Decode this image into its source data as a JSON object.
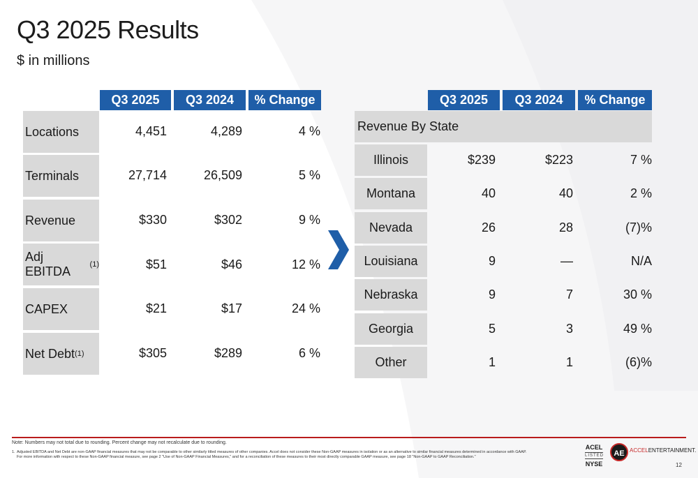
{
  "title": "Q3 2025 Results",
  "subtitle": "$ in millions",
  "left_table": {
    "headers": [
      "Q3 2025",
      "Q3 2024",
      "% Change"
    ],
    "rows": [
      {
        "label": "Locations",
        "sup": "",
        "q3_2025": "4,451",
        "q3_2024": "4,289",
        "change": "4 %"
      },
      {
        "label": "Terminals",
        "sup": "",
        "q3_2025": "27,714",
        "q3_2024": "26,509",
        "change": "5 %"
      },
      {
        "label": "Revenue",
        "sup": "",
        "q3_2025": "$330",
        "q3_2024": "$302",
        "change": "9 %"
      },
      {
        "label": "Adj EBITDA",
        "sup": "(1)",
        "q3_2025": "$51",
        "q3_2024": "$46",
        "change": "12 %"
      },
      {
        "label": "CAPEX",
        "sup": "",
        "q3_2025": "$21",
        "q3_2024": "$17",
        "change": "24 %"
      },
      {
        "label": "Net Debt",
        "sup": "(1)",
        "q3_2025": "$305",
        "q3_2024": "$289",
        "change": "6 %"
      }
    ]
  },
  "right_table": {
    "headers": [
      "Q3 2025",
      "Q3 2024",
      "% Change"
    ],
    "section_label": "Revenue By State",
    "rows": [
      {
        "label": "Illinois",
        "q3_2025": "$239",
        "q3_2024": "$223",
        "change": "7 %"
      },
      {
        "label": "Montana",
        "q3_2025": "40",
        "q3_2024": "40",
        "change": "2 %"
      },
      {
        "label": "Nevada",
        "q3_2025": "26",
        "q3_2024": "28",
        "change": "(7)%"
      },
      {
        "label": "Louisiana",
        "q3_2025": "9",
        "q3_2024": "—",
        "change": "N/A"
      },
      {
        "label": "Nebraska",
        "q3_2025": "9",
        "q3_2024": "7",
        "change": "30 %"
      },
      {
        "label": "Georgia",
        "q3_2025": "5",
        "q3_2024": "3",
        "change": "49 %"
      },
      {
        "label": "Other",
        "q3_2025": "1",
        "q3_2024": "1",
        "change": "(6)%"
      }
    ]
  },
  "footer": {
    "note": "Note: Numbers may not total due to rounding. Percent change may not recalculate due to rounding.",
    "footnote_number": "1.",
    "footnote_text": "Adjusted EBITDA and Net Debt are non-GAAP financial measures that may not be comparable to other similarly titled measures of other companies. Accel does not consider these Non-GAAP measures in isolation or as an alternative to similar financial measures determined in accordance with GAAP.  For more information with respect to these Non-GAAP financial measure, see page 2 \"Use of Non-GAAP Financial Measures,\" and for a reconciliation of these measures to their most directly comparable GAAP measure, see page 18 \"Non-GAAP to GAAP Reconciliation.\"",
    "ticker": "ACEL",
    "listed": "LISTED",
    "exchange": "NYSE",
    "logo_mark": "AE",
    "brand_accent": "ACCEL",
    "brand_rest": "ENTERTAINMENT.",
    "page_number": "12"
  },
  "colors": {
    "header_blue": "#1f5ea8",
    "label_gray": "#d9d9d9",
    "rule_red": "#b91c1c"
  }
}
